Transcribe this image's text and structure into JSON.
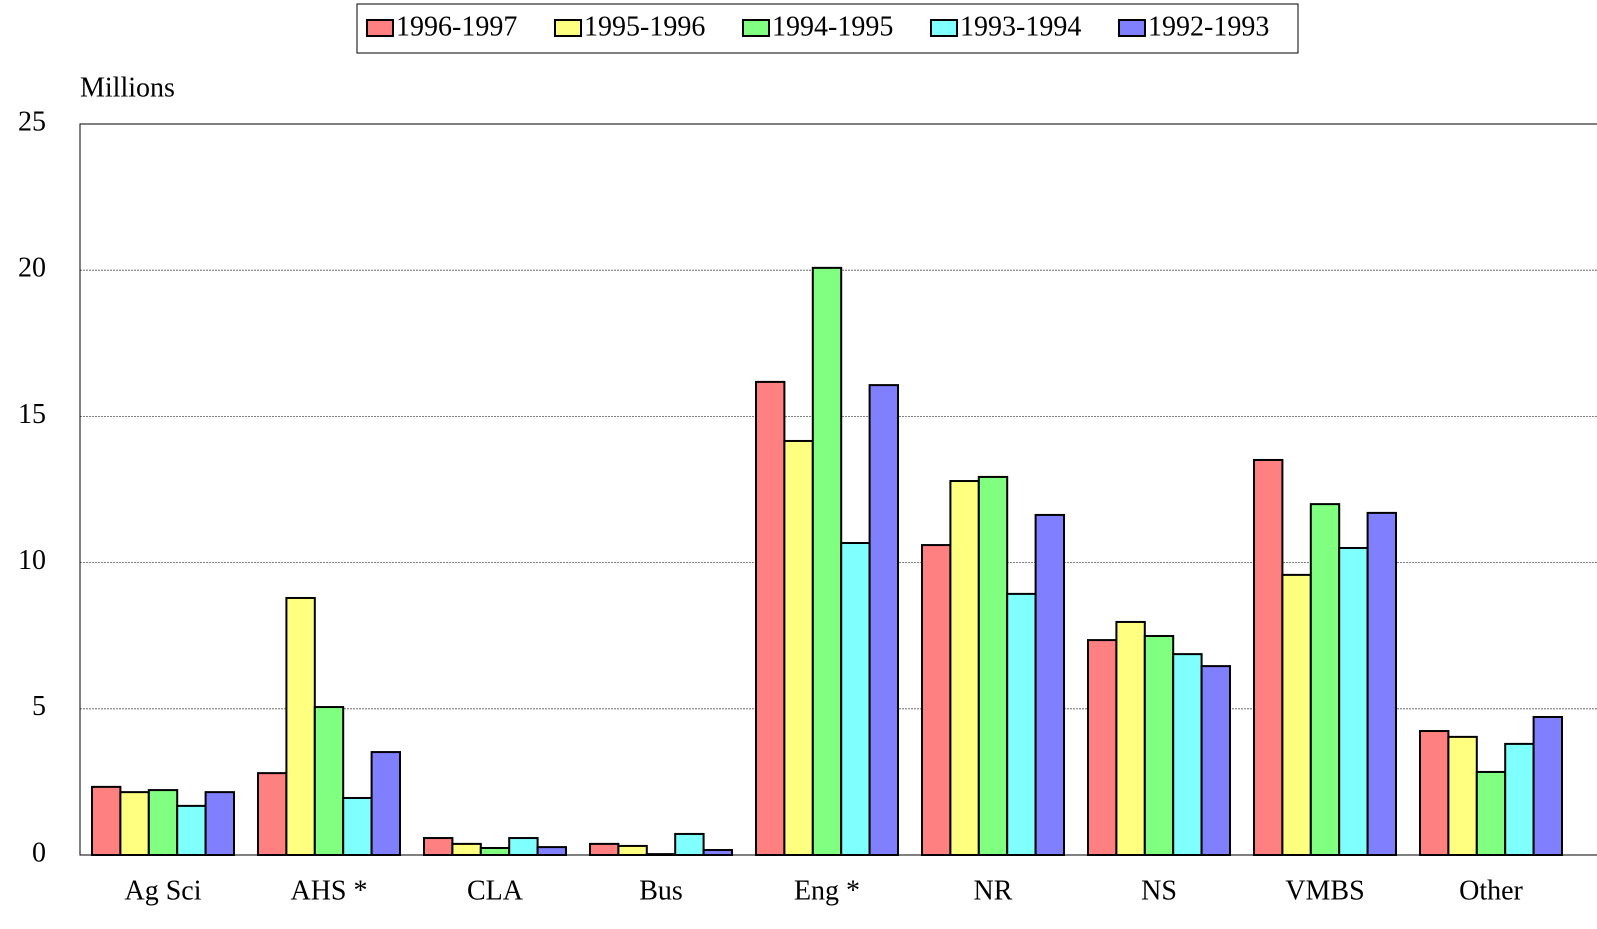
{
  "chart_data": {
    "type": "bar",
    "y_label": "Millions",
    "categories": [
      "Ag Sci",
      "AHS *",
      "CLA",
      "Bus",
      "Eng *",
      "NR",
      "NS",
      "VMBS",
      "Other"
    ],
    "series": [
      {
        "name": "1996-1997",
        "color": "#ff8080",
        "values": [
          2.33,
          2.8,
          0.58,
          0.38,
          16.18,
          10.6,
          7.35,
          13.51,
          4.24
        ]
      },
      {
        "name": "1995-1996",
        "color": "#ffff80",
        "values": [
          2.15,
          8.79,
          0.38,
          0.31,
          14.16,
          12.79,
          7.97,
          9.58,
          4.04
        ]
      },
      {
        "name": "1994-1995",
        "color": "#80ff80",
        "values": [
          2.22,
          5.06,
          0.24,
          0.03,
          20.08,
          12.93,
          7.49,
          12.0,
          2.84
        ]
      },
      {
        "name": "1993-1994",
        "color": "#80ffff",
        "values": [
          1.68,
          1.95,
          0.58,
          0.72,
          10.67,
          8.93,
          6.87,
          10.5,
          3.8
        ]
      },
      {
        "name": "1992-1993",
        "color": "#8080ff",
        "values": [
          2.15,
          3.52,
          0.27,
          0.17,
          16.07,
          11.63,
          6.46,
          11.7,
          4.72
        ]
      }
    ],
    "ylim": [
      0,
      25
    ],
    "yticks": [
      0,
      5,
      10,
      15,
      20,
      25
    ],
    "grid": true,
    "legend": "top"
  }
}
